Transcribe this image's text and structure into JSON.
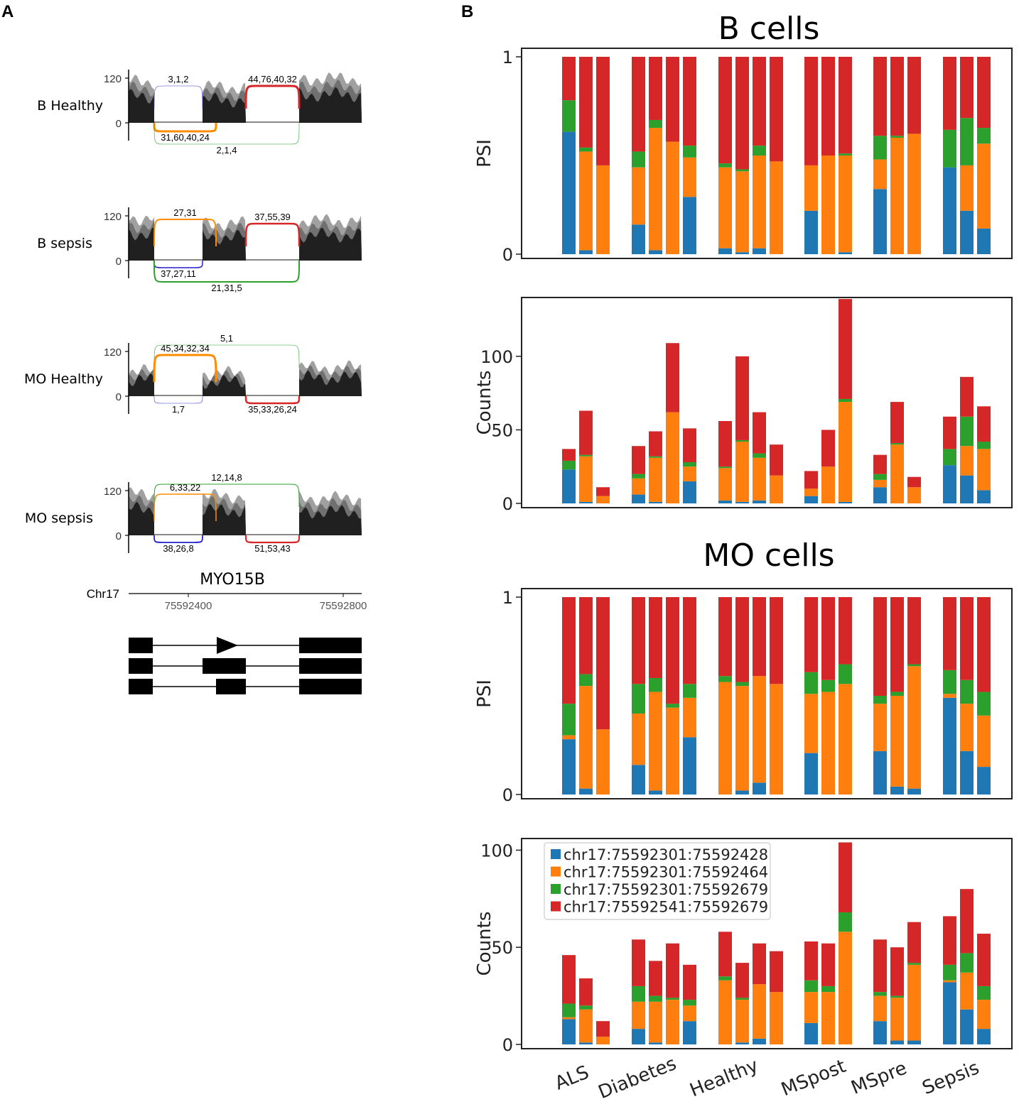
{
  "panel_a": {
    "letter": "A",
    "gene": "MYO15B",
    "chrom": "Chr17",
    "coords": [
      "75592400",
      "75592800"
    ],
    "tracks": [
      {
        "label": "B Healthy",
        "y_ticks": [
          "120",
          "0"
        ],
        "junctions": [
          {
            "id": "j1",
            "label": "3,1,2",
            "color": "#3b3bd6",
            "weight": 0.6,
            "side": "above"
          },
          {
            "id": "j2",
            "label": "31,60,40,24",
            "color": "#ff8c00",
            "weight": 3,
            "side": "below"
          },
          {
            "id": "j3",
            "label": "2,1,4",
            "color": "#2ca02c",
            "weight": 0.6,
            "side": "below"
          },
          {
            "id": "j4",
            "label": "44,76,40,32",
            "color": "#d62728",
            "weight": 3,
            "side": "above"
          }
        ]
      },
      {
        "label": "B sepsis",
        "y_ticks": [
          "120",
          "0"
        ],
        "junctions": [
          {
            "id": "j2",
            "label": "27,31",
            "color": "#ff8c00",
            "weight": 2,
            "side": "above"
          },
          {
            "id": "j4",
            "label": "37,55,39",
            "color": "#d62728",
            "weight": 2.5,
            "side": "above"
          },
          {
            "id": "j1",
            "label": "37,27,11",
            "color": "#2222cc",
            "weight": 1.5,
            "side": "below"
          },
          {
            "id": "j3",
            "label": "21,31,5",
            "color": "#2ca02c",
            "weight": 2,
            "side": "below"
          }
        ]
      },
      {
        "label": "MO Healthy",
        "y_ticks": [
          "120",
          "0"
        ],
        "junctions": [
          {
            "id": "j3",
            "label": "5,1",
            "color": "#2ca02c",
            "weight": 0.6,
            "side": "above"
          },
          {
            "id": "j2",
            "label": "45,34,32,34",
            "color": "#ff8c00",
            "weight": 3,
            "side": "above"
          },
          {
            "id": "j1",
            "label": "1,7",
            "color": "#3b3bd6",
            "weight": 0.6,
            "side": "below"
          },
          {
            "id": "j4",
            "label": "35,33,26,24",
            "color": "#d62728",
            "weight": 2.5,
            "side": "below"
          }
        ]
      },
      {
        "label": "MO sepsis",
        "y_ticks": [
          "120",
          "0"
        ],
        "junctions": [
          {
            "id": "j3",
            "label": "12,14,8",
            "color": "#2ca02c",
            "weight": 1,
            "side": "above"
          },
          {
            "id": "j2",
            "label": "6,33,22",
            "color": "#ff8c00",
            "weight": 1.5,
            "side": "above"
          },
          {
            "id": "j1",
            "label": "38,26,8",
            "color": "#2222cc",
            "weight": 1.8,
            "side": "below"
          },
          {
            "id": "j4",
            "label": "51,53,43",
            "color": "#d62728",
            "weight": 2.2,
            "side": "below"
          }
        ]
      }
    ]
  },
  "panel_b": {
    "letter": "B",
    "colors": [
      "#1f77b4",
      "#ff7f0e",
      "#2ca02c",
      "#d62728"
    ],
    "legend": [
      "chr17:75592301:75592428",
      "chr17:75592301:75592464",
      "chr17:75592301:75592679",
      "chr17:75592541:75592679"
    ],
    "categories": [
      "ALS",
      "Diabetes",
      "Healthy",
      "MSpost",
      "MSpre",
      "Sepsis"
    ]
  },
  "chart_data": [
    {
      "type": "bar",
      "stacked": true,
      "section_title": "B cells",
      "ylabel": "PSI",
      "ylim": [
        0,
        1
      ],
      "yticks": [
        "0",
        "1"
      ],
      "legend": false,
      "groups": [
        [
          [
            0.62,
            0.0,
            0.16,
            0.22
          ],
          [
            0.02,
            0.5,
            0.02,
            0.46
          ],
          [
            0.0,
            0.45,
            0.0,
            0.55
          ]
        ],
        [
          [
            0.15,
            0.29,
            0.08,
            0.48
          ],
          [
            0.02,
            0.62,
            0.04,
            0.32
          ],
          [
            0.0,
            0.57,
            0.0,
            0.43
          ],
          [
            0.29,
            0.2,
            0.06,
            0.45
          ]
        ],
        [
          [
            0.03,
            0.41,
            0.02,
            0.54
          ],
          [
            0.01,
            0.41,
            0.01,
            0.57
          ],
          [
            0.03,
            0.47,
            0.05,
            0.45
          ],
          [
            0.0,
            0.47,
            0.0,
            0.53
          ]
        ],
        [
          [
            0.22,
            0.23,
            0.0,
            0.55
          ],
          [
            0.0,
            0.5,
            0.0,
            0.5
          ],
          [
            0.01,
            0.49,
            0.01,
            0.49
          ]
        ],
        [
          [
            0.33,
            0.15,
            0.12,
            0.4
          ],
          [
            0.0,
            0.59,
            0.01,
            0.4
          ],
          [
            0.0,
            0.61,
            0.0,
            0.39
          ]
        ],
        [
          [
            0.44,
            0.0,
            0.19,
            0.37
          ],
          [
            0.22,
            0.23,
            0.24,
            0.31
          ],
          [
            0.13,
            0.43,
            0.08,
            0.36
          ]
        ]
      ]
    },
    {
      "type": "bar",
      "stacked": true,
      "ylabel": "Counts",
      "ylim": [
        0,
        140
      ],
      "yticks": [
        "0",
        "50",
        "100"
      ],
      "ytick_values": [
        0,
        50,
        100
      ],
      "legend": false,
      "groups": [
        [
          [
            23,
            0,
            6,
            8
          ],
          [
            1,
            31,
            1,
            30
          ],
          [
            0,
            5,
            0,
            6
          ]
        ],
        [
          [
            6,
            11,
            3,
            19
          ],
          [
            1,
            30,
            1,
            17
          ],
          [
            0,
            62,
            0,
            47
          ],
          [
            15,
            10,
            3,
            23
          ]
        ],
        [
          [
            2,
            22,
            1,
            31
          ],
          [
            1,
            41,
            1,
            57
          ],
          [
            2,
            29,
            3,
            28
          ],
          [
            0,
            19,
            0,
            21
          ]
        ],
        [
          [
            5,
            5,
            0,
            12
          ],
          [
            0,
            25,
            0,
            25
          ],
          [
            1,
            68,
            2,
            68
          ]
        ],
        [
          [
            11,
            5,
            4,
            13
          ],
          [
            0,
            40,
            1,
            28
          ],
          [
            0,
            11,
            0,
            7
          ]
        ],
        [
          [
            26,
            0,
            11,
            22
          ],
          [
            19,
            20,
            20,
            27
          ],
          [
            9,
            28,
            5,
            24
          ]
        ]
      ]
    },
    {
      "type": "bar",
      "stacked": true,
      "section_title": "MO cells",
      "ylabel": "PSI",
      "ylim": [
        0,
        1
      ],
      "yticks": [
        "0",
        "1"
      ],
      "legend": false,
      "groups": [
        [
          [
            0.28,
            0.02,
            0.16,
            0.54
          ],
          [
            0.03,
            0.52,
            0.06,
            0.39
          ],
          [
            0.0,
            0.33,
            0.0,
            0.67
          ]
        ],
        [
          [
            0.15,
            0.26,
            0.15,
            0.44
          ],
          [
            0.02,
            0.5,
            0.07,
            0.41
          ],
          [
            0.0,
            0.44,
            0.02,
            0.54
          ],
          [
            0.29,
            0.2,
            0.07,
            0.44
          ]
        ],
        [
          [
            0.0,
            0.57,
            0.03,
            0.4
          ],
          [
            0.02,
            0.53,
            0.02,
            0.43
          ],
          [
            0.06,
            0.54,
            0.0,
            0.4
          ],
          [
            0.0,
            0.56,
            0.0,
            0.44
          ]
        ],
        [
          [
            0.21,
            0.3,
            0.11,
            0.38
          ],
          [
            0.0,
            0.52,
            0.06,
            0.42
          ],
          [
            0.0,
            0.56,
            0.1,
            0.34
          ]
        ],
        [
          [
            0.22,
            0.24,
            0.04,
            0.5
          ],
          [
            0.04,
            0.46,
            0.02,
            0.48
          ],
          [
            0.03,
            0.62,
            0.01,
            0.34
          ]
        ],
        [
          [
            0.49,
            0.02,
            0.12,
            0.37
          ],
          [
            0.22,
            0.24,
            0.12,
            0.42
          ],
          [
            0.14,
            0.26,
            0.12,
            0.48
          ]
        ]
      ]
    },
    {
      "type": "bar",
      "stacked": true,
      "ylabel": "Counts",
      "ylim": [
        0,
        106
      ],
      "yticks": [
        "0",
        "50",
        "100"
      ],
      "ytick_values": [
        0,
        50,
        100
      ],
      "legend": true,
      "legend_position": "top-left",
      "groups": [
        [
          [
            13,
            1,
            7,
            25
          ],
          [
            1,
            17,
            2,
            14
          ],
          [
            0,
            4,
            0,
            8
          ]
        ],
        [
          [
            8,
            14,
            8,
            24
          ],
          [
            1,
            21,
            3,
            18
          ],
          [
            0,
            23,
            1,
            28
          ],
          [
            12,
            8,
            3,
            18
          ]
        ],
        [
          [
            0,
            33,
            2,
            23
          ],
          [
            1,
            22,
            1,
            18
          ],
          [
            3,
            28,
            0,
            21
          ],
          [
            0,
            27,
            0,
            21
          ]
        ],
        [
          [
            11,
            16,
            6,
            20
          ],
          [
            0,
            27,
            3,
            22
          ],
          [
            0,
            58,
            10,
            36
          ]
        ],
        [
          [
            12,
            13,
            2,
            27
          ],
          [
            2,
            22,
            1,
            25
          ],
          [
            2,
            39,
            1,
            21
          ]
        ],
        [
          [
            32,
            1,
            8,
            25
          ],
          [
            18,
            19,
            10,
            33
          ],
          [
            8,
            15,
            7,
            27
          ]
        ]
      ]
    }
  ]
}
